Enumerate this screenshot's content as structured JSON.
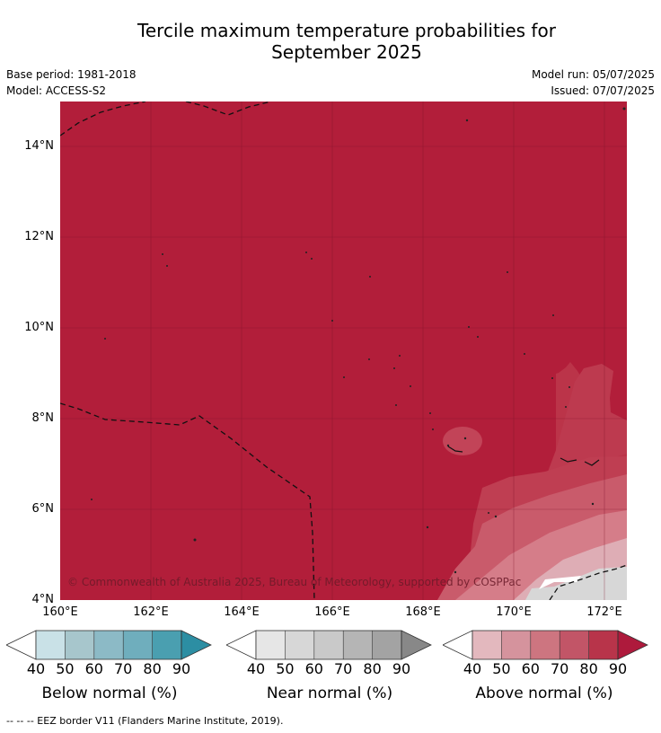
{
  "title_line1": "Tercile maximum temperature probabilities for",
  "title_line2": "September 2025",
  "meta": {
    "base_period": "Base period: 1981-2018",
    "model": "Model: ACCESS-S2",
    "model_run": "Model run: 05/07/2025",
    "issued": "Issued: 07/07/2025"
  },
  "map": {
    "copyright": "© Commonwealth of Australia 2025, Bureau of Meteorology, supported by COSPPac",
    "lat_labels": [
      "14°N",
      "12°N",
      "10°N",
      "8°N",
      "6°N",
      "4°N"
    ],
    "lon_labels": [
      "160°E",
      "162°E",
      "164°E",
      "166°E",
      "168°E",
      "170°E",
      "172°E"
    ],
    "dominant_category": "Above normal 80-90%",
    "colors": {
      "above_90": "#b21e3a",
      "above_80": "#bf3e52",
      "above_70": "#c95b6b",
      "above_60": "#d57d89",
      "above_50": "#deadb5",
      "near_50": "#d7d7d7"
    }
  },
  "colorbars": [
    {
      "label": "Below normal (%)",
      "ticks": [
        "40",
        "50",
        "60",
        "70",
        "80",
        "90"
      ],
      "colors": [
        "#ffffff",
        "#c9e1e7",
        "#a7c6cc",
        "#8cbac6",
        "#6faebd",
        "#4a9fb0",
        "#2c8ea3"
      ]
    },
    {
      "label": "Near normal (%)",
      "ticks": [
        "40",
        "50",
        "60",
        "70",
        "80",
        "90"
      ],
      "colors": [
        "#ffffff",
        "#e6e6e6",
        "#d7d7d7",
        "#c9c9c9",
        "#b5b5b5",
        "#a3a3a3",
        "#888888"
      ]
    },
    {
      "label": "Above normal (%)",
      "ticks": [
        "40",
        "50",
        "60",
        "70",
        "80",
        "90"
      ],
      "colors": [
        "#ffffff",
        "#e3b8be",
        "#d5939d",
        "#cd7580",
        "#c25567",
        "#b8344a",
        "#ae1a3c"
      ]
    }
  ],
  "footnote": "-- -- -- EEZ border V11 (Flanders Marine Institute, 2019)."
}
